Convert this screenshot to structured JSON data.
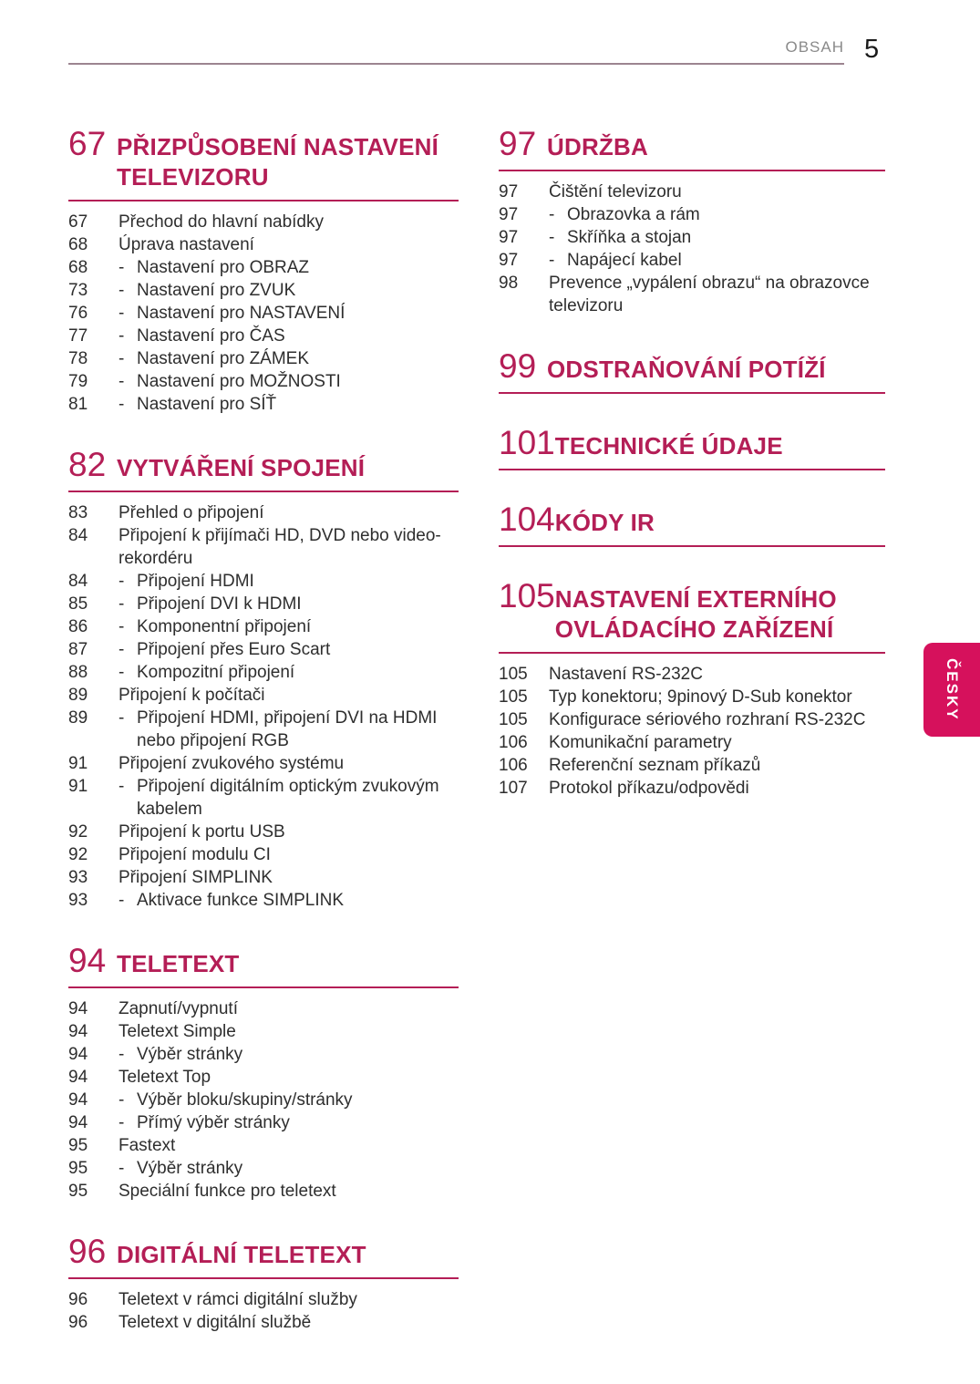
{
  "header": {
    "label": "OBSAH",
    "page_number": "5"
  },
  "language_tab": {
    "label": "ČESKY"
  },
  "colors": {
    "accent": "#b41e56",
    "tab_background": "#d6115c",
    "body_text": "#2e2e2e",
    "header_label": "#8a8a8a",
    "header_rule": "#9c8490"
  },
  "toc": {
    "sub_marker": "-",
    "columns": [
      {
        "sections": [
          {
            "number": "67",
            "title": "PŘIZPŮSOBENÍ NASTAVENÍ TELEVIZORU",
            "entries": [
              {
                "page": "67",
                "label": "Přechod do hlavní nabídky",
                "sub": false
              },
              {
                "page": "68",
                "label": "Úprava nastavení",
                "sub": false
              },
              {
                "page": "68",
                "label": "Nastavení pro OBRAZ",
                "sub": true
              },
              {
                "page": "73",
                "label": "Nastavení pro ZVUK",
                "sub": true
              },
              {
                "page": "76",
                "label": "Nastavení pro NASTAVENÍ",
                "sub": true
              },
              {
                "page": "77",
                "label": "Nastavení pro ČAS",
                "sub": true
              },
              {
                "page": "78",
                "label": "Nastavení pro ZÁMEK",
                "sub": true
              },
              {
                "page": "79",
                "label": "Nastavení pro MOŽNOSTI",
                "sub": true
              },
              {
                "page": "81",
                "label": "Nastavení pro SÍŤ",
                "sub": true
              }
            ]
          },
          {
            "number": "82",
            "title": "VYTVÁŘENÍ SPOJENÍ",
            "entries": [
              {
                "page": "83",
                "label": "Přehled o připojení",
                "sub": false
              },
              {
                "page": "84",
                "label": "Připojení k přijímači HD, DVD nebo video-rekordéru",
                "sub": false
              },
              {
                "page": "84",
                "label": "Připojení HDMI",
                "sub": true
              },
              {
                "page": "85",
                "label": "Připojení DVI k HDMI",
                "sub": true
              },
              {
                "page": "86",
                "label": "Komponentní připojení",
                "sub": true
              },
              {
                "page": "87",
                "label": "Připojení přes Euro Scart",
                "sub": true
              },
              {
                "page": "88",
                "label": "Kompozitní připojení",
                "sub": true
              },
              {
                "page": "89",
                "label": "Připojení k počítači",
                "sub": false
              },
              {
                "page": "89",
                "label": "Připojení HDMI, připojení DVI na HDMI nebo připojení RGB",
                "sub": true
              },
              {
                "page": "91",
                "label": "Připojení zvukového systému",
                "sub": false
              },
              {
                "page": "91",
                "label": "Připojení digitálním optickým zvukovým kabelem",
                "sub": true
              },
              {
                "page": "92",
                "label": "Připojení k portu USB",
                "sub": false
              },
              {
                "page": "92",
                "label": "Připojení modulu CI",
                "sub": false
              },
              {
                "page": "93",
                "label": "Připojení SIMPLINK",
                "sub": false
              },
              {
                "page": "93",
                "label": "Aktivace funkce SIMPLINK",
                "sub": true
              }
            ]
          },
          {
            "number": "94",
            "title": "TELETEXT",
            "entries": [
              {
                "page": "94",
                "label": "Zapnutí/vypnutí",
                "sub": false
              },
              {
                "page": "94",
                "label": "Teletext Simple",
                "sub": false
              },
              {
                "page": "94",
                "label": "Výběr stránky",
                "sub": true
              },
              {
                "page": "94",
                "label": "Teletext Top",
                "sub": false
              },
              {
                "page": "94",
                "label": "Výběr bloku/skupiny/stránky",
                "sub": true
              },
              {
                "page": "94",
                "label": "Přímý výběr stránky",
                "sub": true
              },
              {
                "page": "95",
                "label": "Fastext",
                "sub": false
              },
              {
                "page": "95",
                "label": "Výběr stránky",
                "sub": true
              },
              {
                "page": "95",
                "label": "Speciální funkce pro teletext",
                "sub": false
              }
            ]
          },
          {
            "number": "96",
            "title": "DIGITÁLNÍ TELETEXT",
            "entries": [
              {
                "page": "96",
                "label": "Teletext v rámci digitální služby",
                "sub": false
              },
              {
                "page": "96",
                "label": "Teletext v digitální službě",
                "sub": false
              }
            ]
          }
        ]
      },
      {
        "sections": [
          {
            "number": "97",
            "title": "ÚDRŽBA",
            "entries": [
              {
                "page": "97",
                "label": "Čištění televizoru",
                "sub": false
              },
              {
                "page": "97",
                "label": "Obrazovka a rám",
                "sub": true
              },
              {
                "page": "97",
                "label": "Skříňka a stojan",
                "sub": true
              },
              {
                "page": "97",
                "label": "Napájecí kabel",
                "sub": true
              },
              {
                "page": "98",
                "label": "Prevence „vypálení obrazu“ na obrazovce televizoru",
                "sub": false
              }
            ]
          },
          {
            "number": "99",
            "title": "ODSTRAŇOVÁNÍ POTÍŽÍ",
            "entries": []
          },
          {
            "number": "101",
            "title": "TECHNICKÉ ÚDAJE",
            "entries": []
          },
          {
            "number": "104",
            "title": "KÓDY IR",
            "entries": []
          },
          {
            "number": "105",
            "title": "NASTAVENÍ EXTERNÍHO OVLÁDACÍHO ZAŘÍZENÍ",
            "entries": [
              {
                "page": "105",
                "label": "Nastavení RS-232C",
                "sub": false
              },
              {
                "page": "105",
                "label": "Typ konektoru; 9pinový D-Sub konektor",
                "sub": false
              },
              {
                "page": "105",
                "label": "Konfigurace sériového rozhraní RS-232C",
                "sub": false
              },
              {
                "page": "106",
                "label": "Komunikační parametry",
                "sub": false
              },
              {
                "page": "106",
                "label": "Referenční seznam příkazů",
                "sub": false
              },
              {
                "page": "107",
                "label": "Protokol příkazu/odpovědi",
                "sub": false
              }
            ]
          }
        ]
      }
    ]
  }
}
